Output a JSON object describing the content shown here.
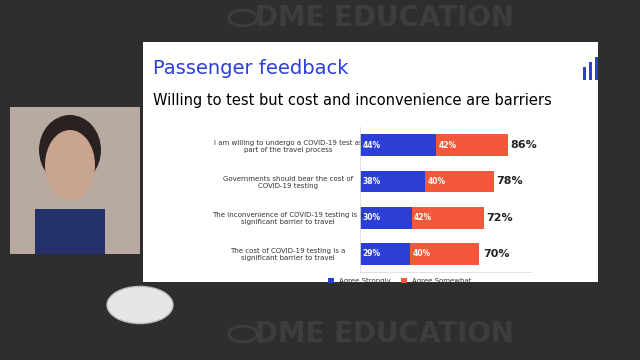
{
  "watermark": "DME EDUCATION",
  "chart_data": {
    "type": "bar",
    "orientation": "horizontal",
    "stacked": true,
    "title": "Passenger feedback",
    "subtitle": "Willing to test but cost and inconvenience are barriers",
    "categories": [
      "I am willing to undergo a COVID-19 test as part of the travel process",
      "Governments should bear the cost of COVID-19 testing",
      "The inconvenience of COVID-19 testing is a significant barrier to travel",
      "The cost of COVID-19 testing is a significant barrier to travel"
    ],
    "series": [
      {
        "name": "Agree Strongly",
        "color": "#2b3fd6",
        "values": [
          44,
          38,
          30,
          29
        ],
        "value_labels": [
          "44%",
          "38%",
          "30%",
          "29%"
        ]
      },
      {
        "name": "Agree Somewhat",
        "color": "#f4583a",
        "values": [
          42,
          40,
          42,
          40
        ],
        "value_labels": [
          "42%",
          "40%",
          "42%",
          "40%"
        ]
      }
    ],
    "totals": [
      86,
      78,
      72,
      70
    ],
    "total_labels": [
      "86%",
      "78%",
      "72%",
      "70%"
    ],
    "xlim": [
      0,
      100
    ],
    "xticks": [],
    "data_labels": true,
    "tick_labels": "y",
    "legend": "lower center",
    "grid": false
  }
}
